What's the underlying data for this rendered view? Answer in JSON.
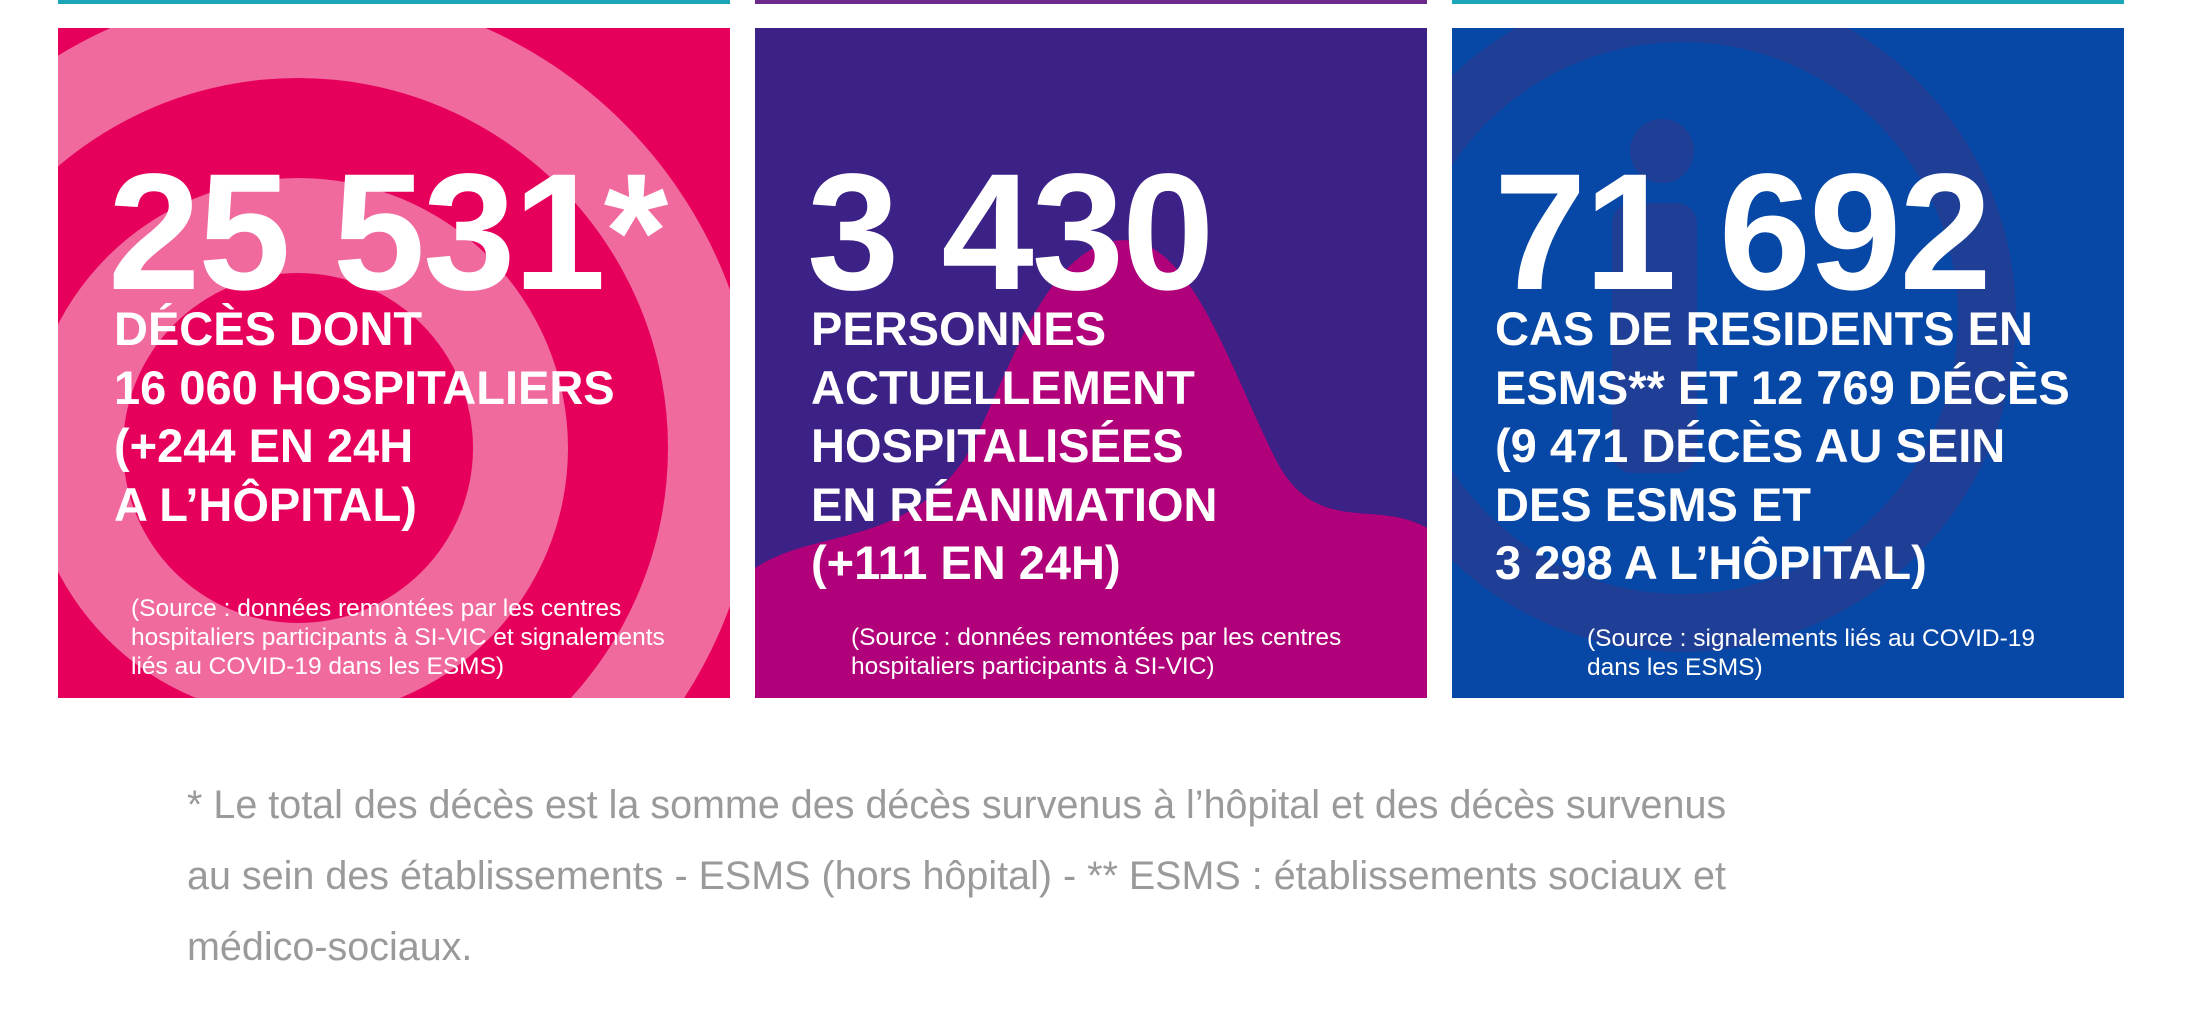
{
  "colors": {
    "pink_dark": "#e6005c",
    "pink_light": "#f06a9e",
    "purple_dark": "#3c2187",
    "purple_blob": "#b0007a",
    "blue_dark": "#0747a6",
    "blue_icon": "#1f3f96",
    "teal_line": "#1aa6b7",
    "footnote_grey": "#9a9a9a"
  },
  "cards": [
    {
      "value": "25 531*",
      "lines": [
        "DÉCÈS DONT",
        "16 060 HOSPITALIERS",
        "(+244 EN 24H",
        "A L’HÔPITAL)"
      ],
      "source_lines": [
        "(Source : données remontées par les centres",
        "hospitaliers participants à SI-VIC et signalements",
        "liés au COVID-19 dans les ESMS)"
      ],
      "background_icon": "concentric-circles-icon"
    },
    {
      "value": "3 430",
      "lines": [
        "PERSONNES",
        "ACTUELLEMENT",
        "HOSPITALISÉES",
        "EN RÉANIMATION",
        "(+111 EN 24H)"
      ],
      "source_lines": [
        "(Source : données remontées par les centres",
        "hospitaliers participants à SI-VIC)"
      ],
      "background_icon": "wave-blob-icon"
    },
    {
      "value": "71 692",
      "lines": [
        "CAS DE RESIDENTS EN",
        "ESMS** ET 12 769 DÉCÈS",
        "(9 471 DÉCÈS AU SEIN",
        "DES ESMS ET",
        "3 298 A L’HÔPITAL)"
      ],
      "source_lines": [
        "(Source : signalements liés au COVID-19",
        "dans les ESMS)"
      ],
      "background_icon": "info-icon"
    }
  ],
  "footnote": {
    "lines": [
      "* Le total des décès est la somme des décès survenus à l’hôpital et des décès survenus",
      "au sein des établissements - ESMS (hors hôpital) - ** ESMS : établissements sociaux et",
      "médico-sociaux."
    ]
  }
}
